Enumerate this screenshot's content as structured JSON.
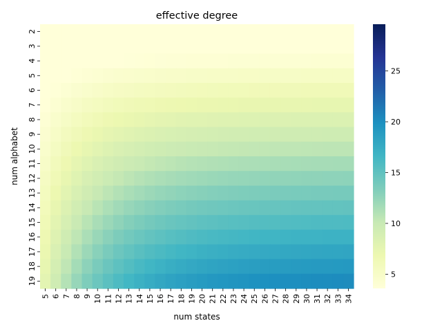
{
  "chart_data": {
    "type": "heatmap",
    "title": "effective degree",
    "xlabel": "num states",
    "ylabel": "num alphabet",
    "x_categories": [
      "5",
      "6",
      "7",
      "8",
      "9",
      "10",
      "11",
      "12",
      "13",
      "14",
      "15",
      "16",
      "17",
      "18",
      "19",
      "20",
      "21",
      "22",
      "23",
      "24",
      "25",
      "26",
      "27",
      "28",
      "29",
      "30",
      "31",
      "32",
      "33",
      "34"
    ],
    "y_categories": [
      "2",
      "3",
      "4",
      "5",
      "6",
      "7",
      "8",
      "9",
      "10",
      "11",
      "12",
      "13",
      "14",
      "15",
      "16",
      "17",
      "18",
      "19"
    ],
    "colorbar": {
      "ticks": [
        5,
        10,
        15,
        20,
        25
      ],
      "min": 3.6,
      "max": 29.6,
      "colormap": "YlGnBu"
    },
    "value_model": "approximate; cell value ≈ 2 + (a − 2)·(1.08 − 1.05·e^(−(s − 2.7)/6.7)) for alphabet a and states s, read from colors"
  },
  "colors": {
    "colormap_stops": [
      "#ffffd9",
      "#edf8b1",
      "#c7e9b4",
      "#7fcdbb",
      "#41b6c4",
      "#1d91c0",
      "#225ea8",
      "#253494",
      "#081d58"
    ]
  }
}
